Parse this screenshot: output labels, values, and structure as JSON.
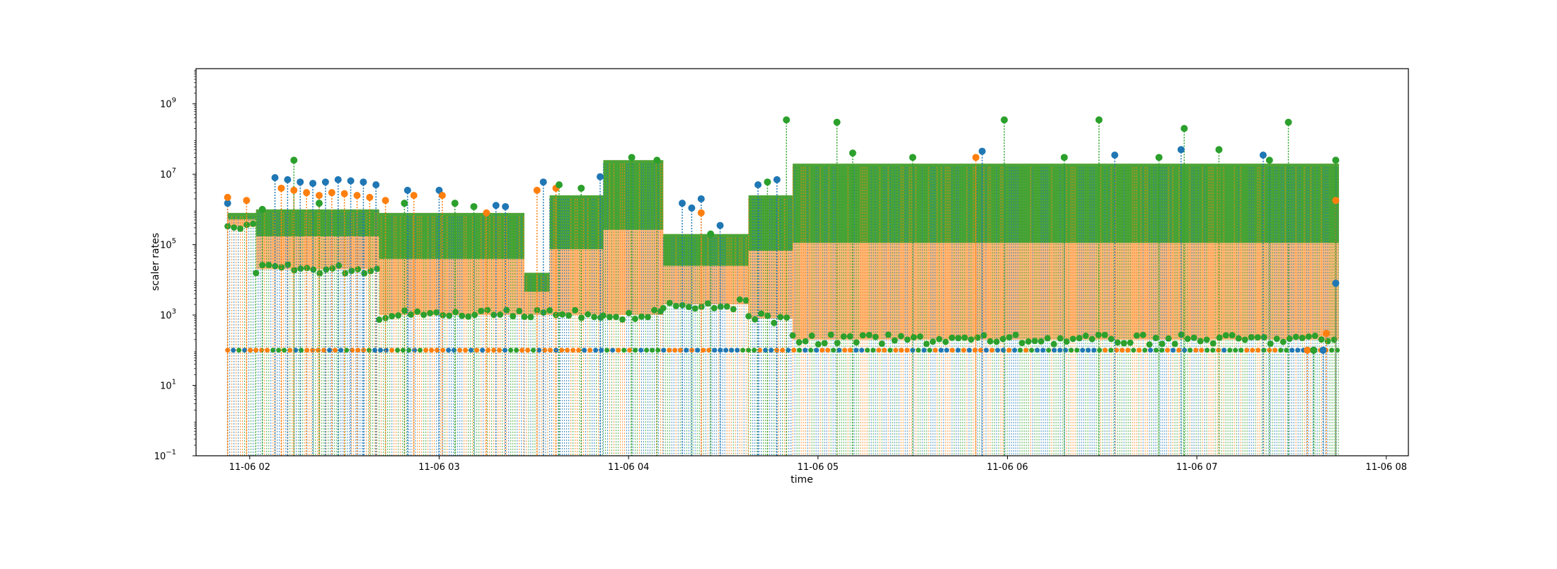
{
  "chart_data": {
    "type": "scatter",
    "title": "",
    "xlabel": "time",
    "ylabel": "scaler rates",
    "yscale": "log",
    "xlim": [
      "11-06 01:43",
      "11-06 08:07"
    ],
    "ylim": [
      0.1,
      10000000000
    ],
    "x_ticks": [
      "11-06 02",
      "11-06 03",
      "11-06 04",
      "11-06 05",
      "11-06 06",
      "11-06 07",
      "11-06 08"
    ],
    "y_ticks": [
      {
        "base": "10",
        "exp": "−1"
      },
      {
        "base": "10",
        "exp": "1"
      },
      {
        "base": "10",
        "exp": "3"
      },
      {
        "base": "10",
        "exp": "5"
      },
      {
        "base": "10",
        "exp": "7"
      },
      {
        "base": "10",
        "exp": "9"
      }
    ],
    "grid": false,
    "legend": "none",
    "marker": "circle with dotted stem to baseline",
    "colors": [
      "#1f77b4",
      "#ff7f0e",
      "#2ca02c"
    ],
    "series": [
      {
        "color": "#1f77b4",
        "points": [
          [
            "11-06 01:53",
            1500000
          ],
          [
            "11-06 02:08",
            8000000
          ],
          [
            "11-06 02:12",
            7000000
          ],
          [
            "11-06 02:16",
            6000000
          ],
          [
            "11-06 02:20",
            5500000
          ],
          [
            "11-06 02:24",
            6000000
          ],
          [
            "11-06 02:28",
            7000000
          ],
          [
            "11-06 02:32",
            6500000
          ],
          [
            "11-06 02:36",
            6000000
          ],
          [
            "11-06 02:40",
            5000000
          ],
          [
            "11-06 02:50",
            3500000
          ],
          [
            "11-06 03:00",
            3500000
          ],
          [
            "11-06 03:18",
            1300000
          ],
          [
            "11-06 03:21",
            1200000
          ],
          [
            "11-06 03:33",
            6000000
          ],
          [
            "11-06 03:51",
            8500000
          ],
          [
            "11-06 04:17",
            1500000
          ],
          [
            "11-06 04:20",
            1100000
          ],
          [
            "11-06 04:23",
            2000000
          ],
          [
            "11-06 04:29",
            350000
          ],
          [
            "11-06 04:41",
            5000000
          ],
          [
            "11-06 04:47",
            7000000
          ],
          [
            "11-06 05:52",
            45000000
          ],
          [
            "11-06 06:34",
            35000000
          ],
          [
            "11-06 06:55",
            50000000
          ],
          [
            "11-06 07:21",
            35000000
          ],
          [
            "11-06 07:37",
            100
          ],
          [
            "11-06 07:40",
            100
          ],
          [
            "11-06 07:44",
            8000
          ]
        ]
      },
      {
        "color": "#ff7f0e",
        "points": [
          [
            "11-06 01:53",
            2200000
          ],
          [
            "11-06 01:59",
            1800000
          ],
          [
            "11-06 02:10",
            4000000
          ],
          [
            "11-06 02:14",
            3500000
          ],
          [
            "11-06 02:18",
            3000000
          ],
          [
            "11-06 02:22",
            2500000
          ],
          [
            "11-06 02:26",
            3000000
          ],
          [
            "11-06 02:30",
            2800000
          ],
          [
            "11-06 02:34",
            2500000
          ],
          [
            "11-06 02:38",
            2200000
          ],
          [
            "11-06 02:43",
            1800000
          ],
          [
            "11-06 02:52",
            2500000
          ],
          [
            "11-06 03:01",
            2500000
          ],
          [
            "11-06 03:15",
            800000
          ],
          [
            "11-06 03:31",
            3500000
          ],
          [
            "11-06 03:37",
            4000000
          ],
          [
            "11-06 04:23",
            800000
          ],
          [
            "11-06 05:50",
            30000000
          ],
          [
            "11-06 07:35",
            100
          ],
          [
            "11-06 07:41",
            300
          ],
          [
            "11-06 07:44",
            1800000
          ]
        ]
      },
      {
        "color": "#2ca02c",
        "points": [
          [
            "11-06 02:04",
            1000000
          ],
          [
            "11-06 02:14",
            25000000
          ],
          [
            "11-06 02:22",
            1500000
          ],
          [
            "11-06 02:49",
            1500000
          ],
          [
            "11-06 03:05",
            1500000
          ],
          [
            "11-06 03:11",
            1200000
          ],
          [
            "11-06 03:38",
            5000000
          ],
          [
            "11-06 03:45",
            4000000
          ],
          [
            "11-06 04:01",
            30000000
          ],
          [
            "11-06 04:09",
            25000000
          ],
          [
            "11-06 04:26",
            200000
          ],
          [
            "11-06 04:44",
            6000000
          ],
          [
            "11-06 04:50",
            350000000
          ],
          [
            "11-06 05:06",
            300000000
          ],
          [
            "11-06 05:11",
            40000000
          ],
          [
            "11-06 05:30",
            30000000
          ],
          [
            "11-06 05:59",
            350000000
          ],
          [
            "11-06 06:18",
            30000000
          ],
          [
            "11-06 06:29",
            350000000
          ],
          [
            "11-06 06:48",
            30000000
          ],
          [
            "11-06 06:56",
            200000000
          ],
          [
            "11-06 07:07",
            50000000
          ],
          [
            "11-06 07:23",
            25000000
          ],
          [
            "11-06 07:29",
            300000000
          ],
          [
            "11-06 07:37",
            100
          ],
          [
            "11-06 07:44",
            25000000
          ]
        ]
      }
    ]
  }
}
